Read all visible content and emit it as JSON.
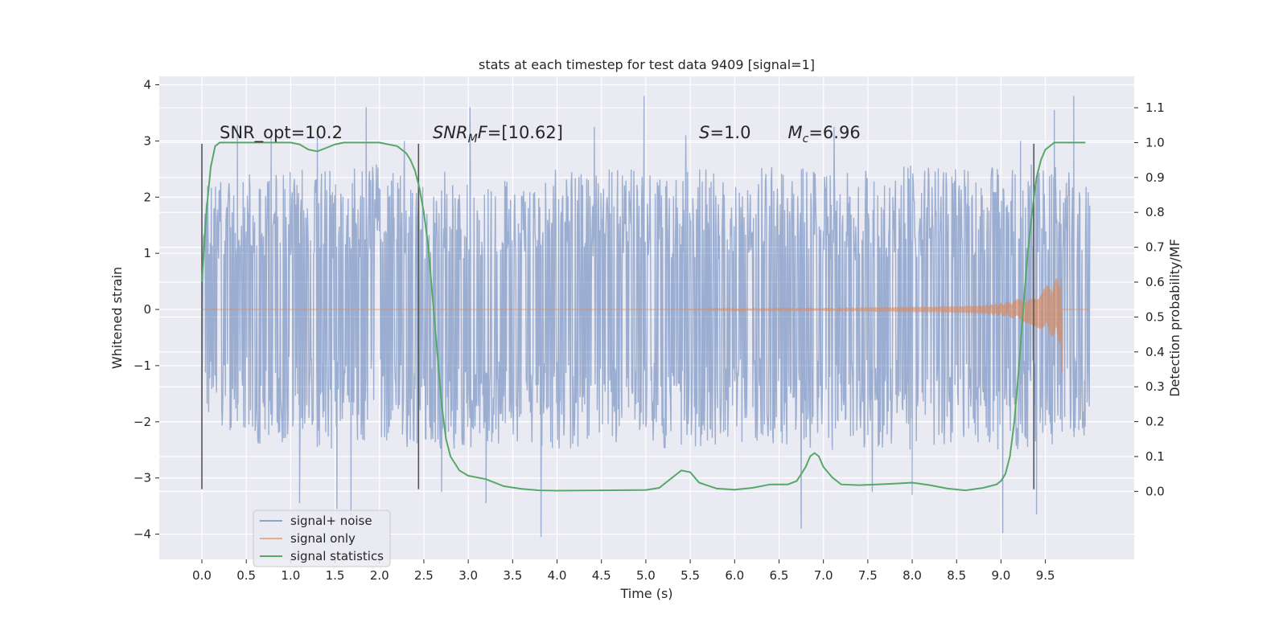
{
  "chart_data": {
    "type": "line",
    "title": "stats at each timestep for test data 9409 [signal=1]",
    "xlabel": "Time (s)",
    "ylabel": "Whitened strain",
    "y2label": "Detection probability/MF",
    "xlim": [
      -0.48,
      10.5
    ],
    "ylim": [
      -4.45,
      4.15
    ],
    "y2lim": [
      -0.195,
      1.19
    ],
    "xticks": [
      0.0,
      0.5,
      1.0,
      1.5,
      2.0,
      2.5,
      3.0,
      3.5,
      4.0,
      4.5,
      5.0,
      5.5,
      6.0,
      6.5,
      7.0,
      7.5,
      8.0,
      8.5,
      9.0,
      9.5
    ],
    "xtick_labels": [
      "0.0",
      "0.5",
      "1.0",
      "1.5",
      "2.0",
      "2.5",
      "3.0",
      "3.5",
      "4.0",
      "4.5",
      "5.0",
      "5.5",
      "6.0",
      "6.5",
      "7.0",
      "7.5",
      "8.0",
      "8.5",
      "9.0",
      "9.5"
    ],
    "yticks": [
      -4,
      -3,
      -2,
      -1,
      0,
      1,
      2,
      3,
      4
    ],
    "ytick_labels": [
      "−4",
      "−3",
      "−2",
      "−1",
      "0",
      "1",
      "2",
      "3",
      "4"
    ],
    "y2ticks": [
      0.0,
      0.1,
      0.2,
      0.3,
      0.4,
      0.5,
      0.6,
      0.7,
      0.8,
      0.9,
      1.0,
      1.1
    ],
    "y2tick_labels": [
      "0.0",
      "0.1",
      "0.2",
      "0.3",
      "0.4",
      "0.5",
      "0.6",
      "0.7",
      "0.8",
      "0.9",
      "1.0",
      "1.1"
    ],
    "grid": true,
    "legend_position": "lower-left",
    "annotations": [
      {
        "parts": [
          {
            "text": "SNR_opt=10.2",
            "italic": false
          }
        ],
        "x": 0.2,
        "y": 3.05
      },
      {
        "parts": [
          {
            "text": "SNR",
            "italic": true
          },
          {
            "text": "M",
            "italic": true,
            "sub": true
          },
          {
            "text": "F",
            "italic": true
          },
          {
            "text": "=[10.62]",
            "italic": false
          }
        ],
        "x": 2.6,
        "y": 3.05
      },
      {
        "parts": [
          {
            "text": "S",
            "italic": true
          },
          {
            "text": "=1.0",
            "italic": false
          }
        ],
        "x": 5.6,
        "y": 3.05
      },
      {
        "parts": [
          {
            "text": "M",
            "italic": true
          },
          {
            "text": "c",
            "italic": true,
            "sub": true
          },
          {
            "text": "=6.96",
            "italic": false
          }
        ],
        "x": 6.6,
        "y": 3.05
      }
    ],
    "vlines": [
      {
        "x": 0.0,
        "ymin": -3.2,
        "ymax": 2.95
      },
      {
        "x": 2.44,
        "ymin": -3.2,
        "ymax": 2.95
      },
      {
        "x": 9.37,
        "ymin": -3.2,
        "ymax": 2.95
      }
    ],
    "series": [
      {
        "name": "signal+ noise",
        "color": "#4c72b0",
        "axis": "left",
        "envelope": {
          "x": [
            0.0,
            0.5,
            1.0,
            1.5,
            2.0,
            2.5,
            3.0,
            3.5,
            4.0,
            4.5,
            5.0,
            5.5,
            6.0,
            6.5,
            7.0,
            7.5,
            8.0,
            8.5,
            9.0,
            9.5,
            10.0
          ],
          "upper": [
            2.2,
            2.4,
            2.5,
            2.5,
            2.6,
            2.5,
            2.5,
            2.5,
            2.5,
            2.5,
            2.5,
            2.5,
            2.5,
            2.6,
            2.5,
            2.5,
            2.6,
            2.6,
            2.6,
            2.7,
            2.3
          ],
          "lower": [
            -1.8,
            -2.4,
            -2.4,
            -2.5,
            -2.4,
            -2.5,
            -2.5,
            -2.5,
            -2.5,
            -2.4,
            -2.5,
            -2.5,
            -2.4,
            -2.5,
            -2.5,
            -2.5,
            -2.5,
            -2.5,
            -2.5,
            -2.6,
            -2.2
          ]
        },
        "peaks": [
          {
            "x": 0.4,
            "y": 3.28
          },
          {
            "x": 0.78,
            "y": 3.05
          },
          {
            "x": 1.3,
            "y": 3.2
          },
          {
            "x": 1.85,
            "y": 3.6
          },
          {
            "x": 2.28,
            "y": 3.0
          },
          {
            "x": 3.02,
            "y": 3.6
          },
          {
            "x": 4.42,
            "y": 3.25
          },
          {
            "x": 4.98,
            "y": 3.8
          },
          {
            "x": 5.45,
            "y": 3.1
          },
          {
            "x": 7.12,
            "y": 3.25
          },
          {
            "x": 9.22,
            "y": 3.0
          },
          {
            "x": 9.6,
            "y": 3.55
          },
          {
            "x": 9.82,
            "y": 3.8
          },
          {
            "x": 1.1,
            "y": -3.45
          },
          {
            "x": 1.52,
            "y": -3.55
          },
          {
            "x": 1.68,
            "y": -3.65
          },
          {
            "x": 3.82,
            "y": -4.05
          },
          {
            "x": 6.75,
            "y": -3.9
          },
          {
            "x": 9.02,
            "y": -3.98
          },
          {
            "x": 9.4,
            "y": -3.65
          },
          {
            "x": 2.7,
            "y": -3.25
          },
          {
            "x": 3.2,
            "y": -3.45
          },
          {
            "x": 8.0,
            "y": -3.3
          },
          {
            "x": 7.55,
            "y": -3.25
          }
        ]
      },
      {
        "name": "signal only",
        "color": "#dd8452",
        "axis": "left",
        "chirp": {
          "t_start": 5.2,
          "t_merge": 9.68,
          "t_end": 10.0,
          "peak_amplitude": 1.3,
          "end_level": -1.1
        }
      },
      {
        "name": "signal statistics",
        "color": "#55a868",
        "axis": "right",
        "x": [
          0.0,
          0.05,
          0.1,
          0.15,
          0.2,
          0.3,
          0.5,
          0.7,
          0.9,
          1.0,
          1.1,
          1.2,
          1.3,
          1.4,
          1.5,
          1.6,
          1.8,
          2.0,
          2.1,
          2.2,
          2.3,
          2.35,
          2.4,
          2.45,
          2.5,
          2.55,
          2.6,
          2.65,
          2.7,
          2.75,
          2.8,
          2.9,
          3.0,
          3.2,
          3.4,
          3.6,
          3.8,
          4.0,
          4.5,
          5.0,
          5.15,
          5.3,
          5.4,
          5.5,
          5.6,
          5.8,
          6.0,
          6.2,
          6.4,
          6.6,
          6.7,
          6.8,
          6.85,
          6.9,
          6.95,
          7.0,
          7.1,
          7.2,
          7.4,
          7.6,
          7.8,
          8.0,
          8.2,
          8.4,
          8.6,
          8.8,
          8.95,
          9.0,
          9.05,
          9.1,
          9.15,
          9.2,
          9.25,
          9.3,
          9.35,
          9.4,
          9.45,
          9.5,
          9.55,
          9.6,
          9.7,
          9.8,
          9.95
        ],
        "y": [
          0.6,
          0.8,
          0.93,
          0.99,
          1.0,
          1.0,
          1.0,
          1.0,
          1.0,
          1.0,
          0.995,
          0.98,
          0.975,
          0.985,
          0.995,
          1.0,
          1.0,
          1.0,
          0.995,
          0.99,
          0.97,
          0.95,
          0.92,
          0.87,
          0.8,
          0.7,
          0.55,
          0.4,
          0.25,
          0.15,
          0.1,
          0.06,
          0.045,
          0.035,
          0.015,
          0.007,
          0.003,
          0.002,
          0.003,
          0.004,
          0.01,
          0.04,
          0.06,
          0.055,
          0.025,
          0.008,
          0.005,
          0.01,
          0.02,
          0.02,
          0.03,
          0.07,
          0.1,
          0.11,
          0.1,
          0.07,
          0.04,
          0.02,
          0.018,
          0.02,
          0.022,
          0.025,
          0.018,
          0.008,
          0.003,
          0.01,
          0.02,
          0.03,
          0.05,
          0.1,
          0.2,
          0.35,
          0.52,
          0.68,
          0.8,
          0.9,
          0.95,
          0.98,
          0.99,
          1.0,
          1.0,
          1.0,
          1.0
        ]
      }
    ]
  }
}
